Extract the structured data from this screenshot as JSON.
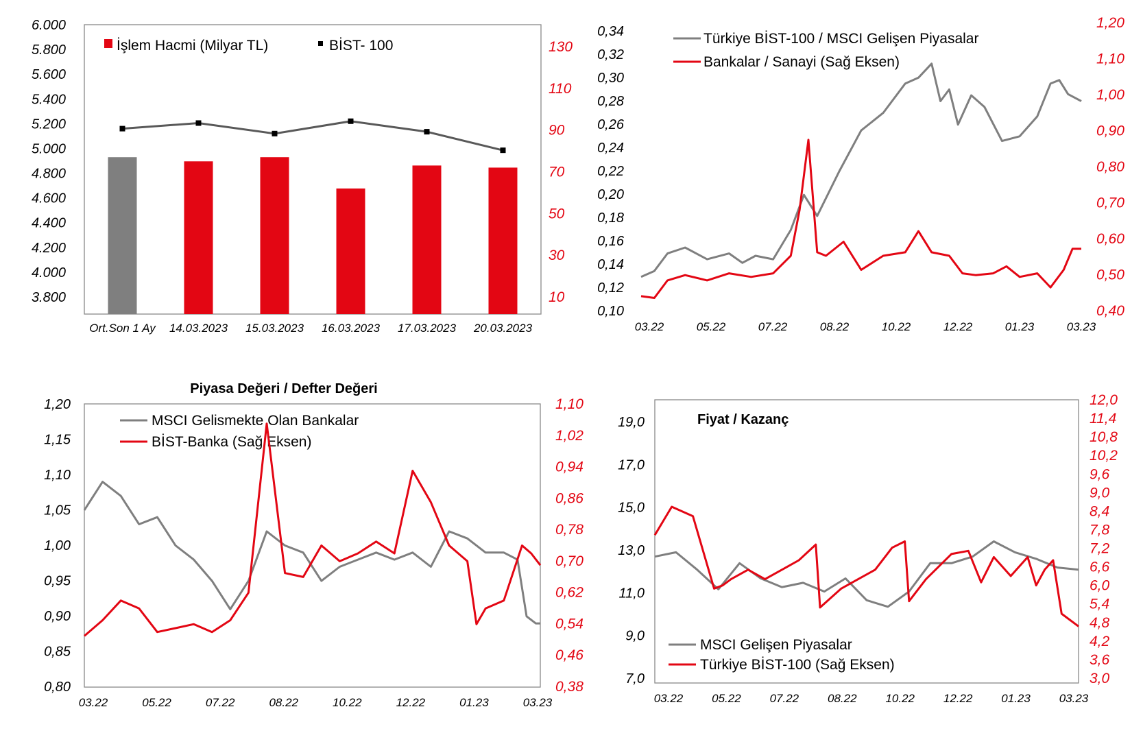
{
  "colors": {
    "gray": "#7f7f7f",
    "red": "#e30613",
    "line_dark": "#595959",
    "marker": "#000000"
  },
  "chart_data": [
    {
      "type": "bar",
      "title": "",
      "categories": [
        "Ort.Son 1 Ay",
        "14.03.2023",
        "15.03.2023",
        "16.03.2023",
        "17.03.2023",
        "20.03.2023"
      ],
      "y_left_ticks": [
        "6.000",
        "5.800",
        "5.600",
        "5.400",
        "5.200",
        "5.000",
        "4.800",
        "4.600",
        "4.400",
        "4.200",
        "4.000",
        "3.800"
      ],
      "y_left_range": [
        3800,
        6000
      ],
      "y_right_ticks": [
        "130",
        "110",
        "90",
        "70",
        "50",
        "30",
        "10"
      ],
      "y_right_range": [
        10,
        140
      ],
      "legend": [
        "İşlem Hacmi (Milyar TL)",
        "BİST- 100"
      ],
      "series": [
        {
          "name": "İşlem Hacmi (Milyar TL)",
          "type": "bar",
          "axis": "right",
          "values": [
            77,
            75,
            77,
            62,
            73,
            72
          ]
        },
        {
          "name": "BİST- 100",
          "type": "line",
          "axis": "left",
          "values": [
            5160,
            5205,
            5120,
            5220,
            5135,
            4985
          ]
        }
      ]
    },
    {
      "type": "line",
      "title": "",
      "x_ticks": [
        "03.22",
        "05.22",
        "07.22",
        "08.22",
        "10.22",
        "12.22",
        "01.23",
        "03.23"
      ],
      "y_left_ticks": [
        "0,34",
        "0,32",
        "0,30",
        "0,28",
        "0,26",
        "0,24",
        "0,22",
        "0,20",
        "0,18",
        "0,16",
        "0,14",
        "0,12",
        "0,10"
      ],
      "y_left_range": [
        0.1,
        0.34
      ],
      "y_right_ticks": [
        "1,20",
        "1,10",
        "1,00",
        "0,90",
        "0,80",
        "0,70",
        "0,60",
        "0,50",
        "0,40"
      ],
      "y_right_range": [
        0.4,
        1.2
      ],
      "legend": [
        "Türkiye BİST-100 / MSCI Gelişen Piyasalar",
        "Bankalar / Sanayi (Sağ Eksen)"
      ],
      "series": [
        {
          "name": "Türkiye BİST-100 / MSCI Gelişen Piyasalar",
          "axis": "left",
          "x": [
            0,
            0.03,
            0.06,
            0.1,
            0.15,
            0.2,
            0.23,
            0.26,
            0.3,
            0.34,
            0.37,
            0.4,
            0.45,
            0.5,
            0.55,
            0.6,
            0.63,
            0.66,
            0.68,
            0.7,
            0.72,
            0.75,
            0.78,
            0.82,
            0.86,
            0.9,
            0.93,
            0.95,
            0.97,
            1.0
          ],
          "values": [
            0.13,
            0.135,
            0.15,
            0.155,
            0.145,
            0.15,
            0.142,
            0.148,
            0.145,
            0.17,
            0.2,
            0.182,
            0.22,
            0.255,
            0.27,
            0.295,
            0.3,
            0.312,
            0.28,
            0.29,
            0.26,
            0.285,
            0.275,
            0.246,
            0.25,
            0.267,
            0.295,
            0.298,
            0.286,
            0.28
          ]
        },
        {
          "name": "Bankalar / Sanayi (Sağ Eksen)",
          "axis": "right",
          "x": [
            0,
            0.03,
            0.06,
            0.1,
            0.15,
            0.2,
            0.25,
            0.3,
            0.34,
            0.36,
            0.38,
            0.4,
            0.42,
            0.46,
            0.5,
            0.55,
            0.6,
            0.63,
            0.66,
            0.7,
            0.73,
            0.76,
            0.8,
            0.83,
            0.86,
            0.9,
            0.93,
            0.96,
            0.98,
            1.0
          ],
          "values": [
            0.445,
            0.44,
            0.49,
            0.505,
            0.49,
            0.51,
            0.5,
            0.51,
            0.56,
            0.69,
            0.89,
            0.57,
            0.56,
            0.6,
            0.52,
            0.56,
            0.57,
            0.63,
            0.57,
            0.56,
            0.51,
            0.505,
            0.51,
            0.53,
            0.5,
            0.51,
            0.47,
            0.52,
            0.58,
            0.58
          ]
        }
      ]
    },
    {
      "type": "line",
      "title": "Piyasa Değeri / Defter Değeri",
      "x_ticks": [
        "03.22",
        "05.22",
        "07.22",
        "08.22",
        "10.22",
        "12.22",
        "01.23",
        "03.23"
      ],
      "y_left_ticks": [
        "1,20",
        "1,15",
        "1,10",
        "1,05",
        "1,00",
        "0,95",
        "0,90",
        "0,85",
        "0,80"
      ],
      "y_left_range": [
        0.8,
        1.2
      ],
      "y_right_ticks": [
        "1,10",
        "1,02",
        "0,94",
        "0,86",
        "0,78",
        "0,70",
        "0,62",
        "0,54",
        "0,46",
        "0,38"
      ],
      "y_right_range": [
        0.38,
        1.1
      ],
      "legend": [
        "MSCI Gelismekte Olan Bankalar",
        "BİST-Banka (Sağ Eksen)"
      ],
      "series": [
        {
          "name": "MSCI Gelismekte Olan Bankalar",
          "axis": "left",
          "x": [
            0,
            0.04,
            0.08,
            0.12,
            0.16,
            0.2,
            0.24,
            0.28,
            0.32,
            0.36,
            0.4,
            0.44,
            0.48,
            0.52,
            0.56,
            0.6,
            0.64,
            0.68,
            0.72,
            0.76,
            0.8,
            0.84,
            0.88,
            0.92,
            0.95,
            0.97,
            0.99,
            1.0
          ],
          "values": [
            1.05,
            1.09,
            1.07,
            1.03,
            1.04,
            1.0,
            0.98,
            0.95,
            0.91,
            0.95,
            1.02,
            1.0,
            0.99,
            0.95,
            0.97,
            0.98,
            0.99,
            0.98,
            0.99,
            0.97,
            1.02,
            1.01,
            0.99,
            0.99,
            0.98,
            0.9,
            0.89,
            0.89
          ]
        },
        {
          "name": "BİST-Banka (Sağ Eksen)",
          "axis": "right",
          "x": [
            0,
            0.04,
            0.08,
            0.12,
            0.16,
            0.2,
            0.24,
            0.28,
            0.32,
            0.36,
            0.4,
            0.44,
            0.48,
            0.52,
            0.56,
            0.6,
            0.64,
            0.68,
            0.72,
            0.76,
            0.8,
            0.84,
            0.86,
            0.88,
            0.92,
            0.96,
            0.98,
            1.0
          ],
          "values": [
            0.51,
            0.55,
            0.6,
            0.58,
            0.52,
            0.53,
            0.54,
            0.52,
            0.55,
            0.62,
            1.05,
            0.67,
            0.66,
            0.74,
            0.7,
            0.72,
            0.75,
            0.72,
            0.93,
            0.85,
            0.74,
            0.7,
            0.54,
            0.58,
            0.6,
            0.74,
            0.72,
            0.69
          ]
        }
      ]
    },
    {
      "type": "line",
      "title": "Fiyat / Kazanç",
      "x_ticks": [
        "03.22",
        "05.22",
        "07.22",
        "08.22",
        "10.22",
        "12.22",
        "01.23",
        "03.23"
      ],
      "y_left_ticks": [
        "19,0",
        "17,0",
        "15,0",
        "13,0",
        "11,0",
        "9,0",
        "7,0"
      ],
      "y_left_range": [
        7.0,
        20.0
      ],
      "y_right_ticks": [
        "12,0",
        "11,4",
        "10,8",
        "10,2",
        "9,6",
        "9,0",
        "8,4",
        "7,8",
        "7,2",
        "6,6",
        "6,0",
        "5,4",
        "4,8",
        "4,2",
        "3,6",
        "3,0"
      ],
      "y_right_range": [
        3.0,
        12.0
      ],
      "legend": [
        "MSCI Gelişen Piyasalar",
        "Türkiye BİST-100 (Sağ Eksen)"
      ],
      "series": [
        {
          "name": "MSCI Gelişen Piyasalar",
          "axis": "left",
          "x": [
            0,
            0.05,
            0.1,
            0.15,
            0.2,
            0.25,
            0.3,
            0.35,
            0.4,
            0.45,
            0.5,
            0.55,
            0.6,
            0.65,
            0.7,
            0.75,
            0.8,
            0.85,
            0.9,
            0.95,
            1.0
          ],
          "values": [
            12.8,
            13.0,
            12.2,
            11.3,
            12.5,
            11.8,
            11.4,
            11.6,
            11.2,
            11.8,
            10.8,
            10.5,
            11.2,
            12.5,
            12.5,
            12.8,
            13.5,
            13.0,
            12.7,
            12.3,
            12.2
          ]
        },
        {
          "name": "Türkiye BİST-100 (Sağ Eksen)",
          "axis": "right",
          "x": [
            0,
            0.04,
            0.09,
            0.14,
            0.16,
            0.18,
            0.22,
            0.26,
            0.3,
            0.34,
            0.38,
            0.39,
            0.44,
            0.48,
            0.52,
            0.56,
            0.59,
            0.6,
            0.64,
            0.7,
            0.74,
            0.77,
            0.8,
            0.84,
            0.88,
            0.9,
            0.92,
            0.94,
            0.96,
            1.0
          ],
          "values": [
            7.7,
            8.6,
            8.3,
            6.0,
            6.1,
            6.3,
            6.6,
            6.3,
            6.6,
            6.9,
            7.4,
            5.4,
            6.0,
            6.3,
            6.6,
            7.3,
            7.5,
            5.6,
            6.3,
            7.1,
            7.2,
            6.2,
            7.0,
            6.4,
            7.0,
            6.1,
            6.6,
            6.9,
            5.2,
            4.8
          ]
        }
      ]
    }
  ]
}
